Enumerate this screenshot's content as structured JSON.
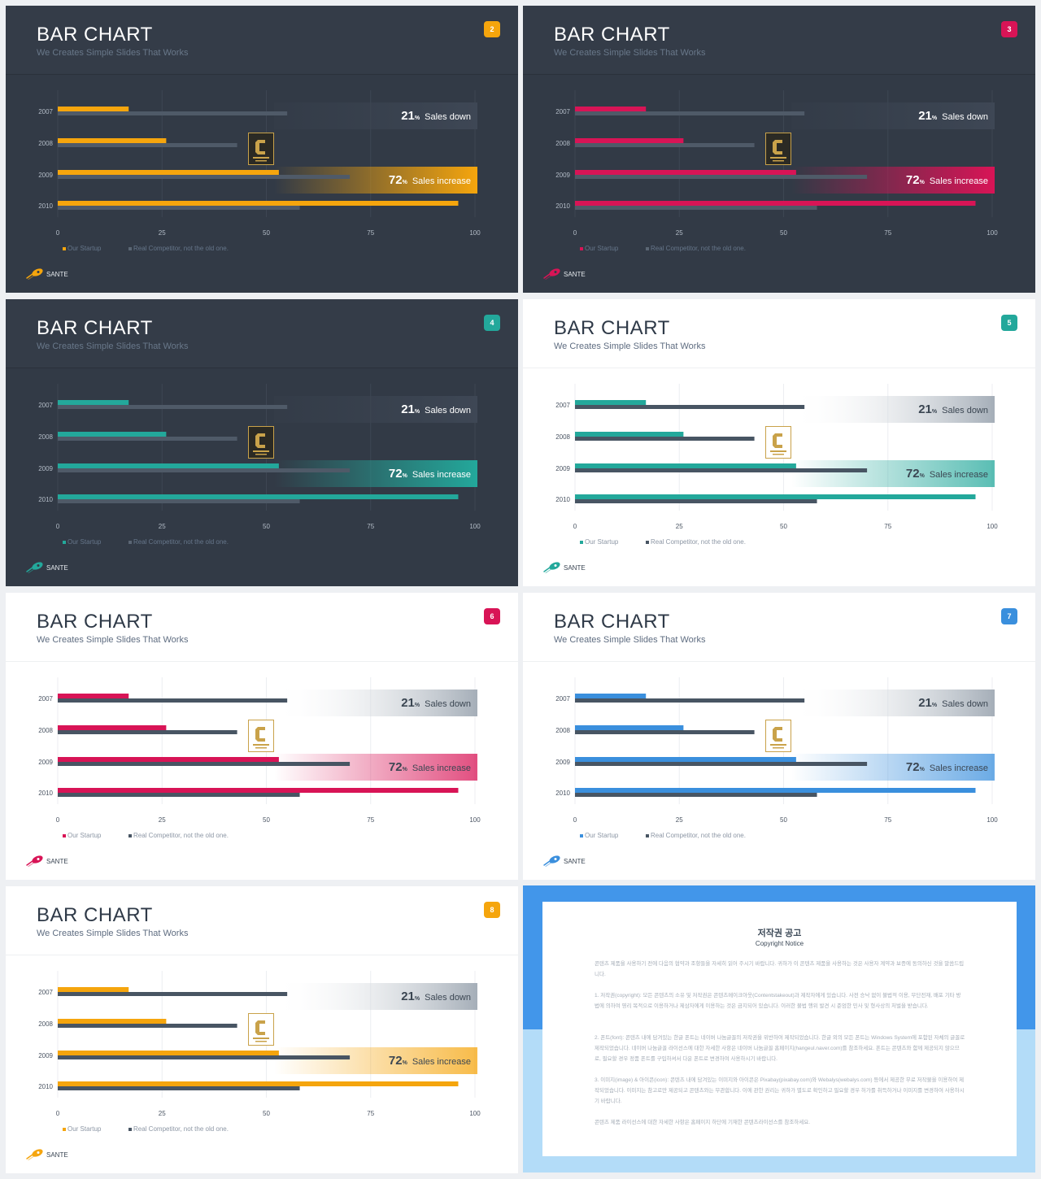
{
  "slides": [
    {
      "theme": "dark",
      "accent": "#f5a50d",
      "page": "2",
      "title": "BAR CHART",
      "subtitle": "We Creates Simple Slides That Works",
      "callout_down": {
        "value": "21",
        "unit": "%",
        "label": "Sales down"
      },
      "callout_up": {
        "value": "72",
        "unit": "%",
        "label": "Sales increase"
      },
      "legend": [
        "Our Startup",
        "Real Competitor, not the old one."
      ],
      "logo": "SANTE"
    },
    {
      "theme": "dark",
      "accent": "#d81456",
      "page": "3",
      "title": "BAR CHART",
      "subtitle": "We Creates Simple Slides That Works",
      "callout_down": {
        "value": "21",
        "unit": "%",
        "label": "Sales down"
      },
      "callout_up": {
        "value": "72",
        "unit": "%",
        "label": "Sales increase"
      },
      "legend": [
        "Our Startup",
        "Real Competitor, not the old one."
      ],
      "logo": "SANTE"
    },
    {
      "theme": "dark",
      "accent": "#23a89b",
      "page": "4",
      "title": "BAR CHART",
      "subtitle": "We Creates Simple Slides That Works",
      "callout_down": {
        "value": "21",
        "unit": "%",
        "label": "Sales down"
      },
      "callout_up": {
        "value": "72",
        "unit": "%",
        "label": "Sales increase"
      },
      "legend": [
        "Our Startup",
        "Real Competitor, not the old one."
      ],
      "logo": "SANTE"
    },
    {
      "theme": "light",
      "accent": "#23a89b",
      "page": "5",
      "title": "BAR CHART",
      "subtitle": "We Creates Simple Slides That Works",
      "callout_down": {
        "value": "21",
        "unit": "%",
        "label": "Sales down"
      },
      "callout_up": {
        "value": "72",
        "unit": "%",
        "label": "Sales increase"
      },
      "legend": [
        "Our Startup",
        "Real Competitor, not the old one."
      ],
      "logo": "SANTE"
    },
    {
      "theme": "light",
      "accent": "#d81456",
      "page": "6",
      "title": "BAR CHART",
      "subtitle": "We Creates Simple Slides That Works",
      "callout_down": {
        "value": "21",
        "unit": "%",
        "label": "Sales down"
      },
      "callout_up": {
        "value": "72",
        "unit": "%",
        "label": "Sales increase"
      },
      "legend": [
        "Our Startup",
        "Real Competitor, not the old one."
      ],
      "logo": "SANTE"
    },
    {
      "theme": "light",
      "accent": "#3a8fdd",
      "page": "7",
      "title": "BAR CHART",
      "subtitle": "We Creates Simple Slides That Works",
      "callout_down": {
        "value": "21",
        "unit": "%",
        "label": "Sales down"
      },
      "callout_up": {
        "value": "72",
        "unit": "%",
        "label": "Sales increase"
      },
      "legend": [
        "Our Startup",
        "Real Competitor, not the old one."
      ],
      "logo": "SANTE"
    },
    {
      "theme": "light",
      "accent": "#f5a50d",
      "page": "8",
      "title": "BAR CHART",
      "subtitle": "We Creates Simple Slides That Works",
      "callout_down": {
        "value": "21",
        "unit": "%",
        "label": "Sales down"
      },
      "callout_up": {
        "value": "72",
        "unit": "%",
        "label": "Sales increase"
      },
      "legend": [
        "Our Startup",
        "Real Competitor, not the old one."
      ],
      "logo": "SANTE"
    }
  ],
  "chart_data": {
    "type": "bar",
    "orientation": "horizontal",
    "categories": [
      "2007",
      "2008",
      "2009",
      "2010"
    ],
    "series": [
      {
        "name": "Our Startup",
        "values": [
          17,
          26,
          53,
          96
        ]
      },
      {
        "name": "Real Competitor, not the old one.",
        "values": [
          55,
          43,
          70,
          58
        ]
      }
    ],
    "xlim": [
      0,
      100
    ],
    "xticks": [
      "0",
      "25",
      "50",
      "75",
      "100"
    ],
    "grid": true,
    "legend_position": "bottom-left"
  },
  "copyright": {
    "title": "저작권 공고",
    "subtitle": "Copyright Notice",
    "paragraphs": [
      "콘텐츠 제품을 사용하기 전에 다음의 협약과 조항들을 자세히 읽어 주시기 바랍니다. 귀하가 이 콘텐츠 제품을 사용하는 것은 사용자 계약과 보증에 동의하신 것을 말씀드립니다.",
      "1. 저작권(copyright): 모든 콘텐츠의 소유 및 저작권은 콘텐츠메이크아웃(Contentstakeout)과 제작자에게 있습니다. 사전 승낙 없이 불법적 이용, 무단전재, 배포 기타 방법에 의하여 영리 목적으로 이용하거나 제삼자에게 이용하는 것은 금지되어 있습니다. 이러한 불법 행위 발견 시 준엄한 민사 및 형사상의 처벌을 받습니다.",
      "2. 폰트(font): 콘텐츠 내에 담겨있는 한글 폰트는 네이버 나눔글꼴의 저작권을 위반하여 제작되었습니다. 한글 외의 모든 폰트는 Windows System에 포함된 자체의 글꼴로 제작되었습니다. 네이버 나눔글꼴 라이선스에 대한 자세한 사항은 네이버 나눔글꼴 홈페이지(hangeul.naver.com)를 참조하세요. 폰트는 콘텐츠와 함께 제공되지 않으므로, 필요할 경우 정품 폰트를 구입하셔서 다운 폰트로 변경하여 사용하시기 바랍니다.",
      "3. 이미지(image) & 아이콘(icon): 콘텐츠 내에 담겨있는 이미지와 아이콘은 Pixabay(pixabay.com)와 Webalys(webalys.com) 등에서 제공한 무료 저작물을 이용하여 제작되었습니다. 이미지는 참고로만 제공되고 콘텐츠와는 무관합니다. 이에 관한 권리는 귀하가 별도로 확인하고 필요할 경우 허가를 취득하거나 이미지를 변경하여 사용하시기 바랍니다.",
      "콘텐츠 제품 라이선스에 대한 자세한 사항은 홈페이지 하단에 기재한 콘텐츠라이선스를 참조하세요."
    ]
  }
}
